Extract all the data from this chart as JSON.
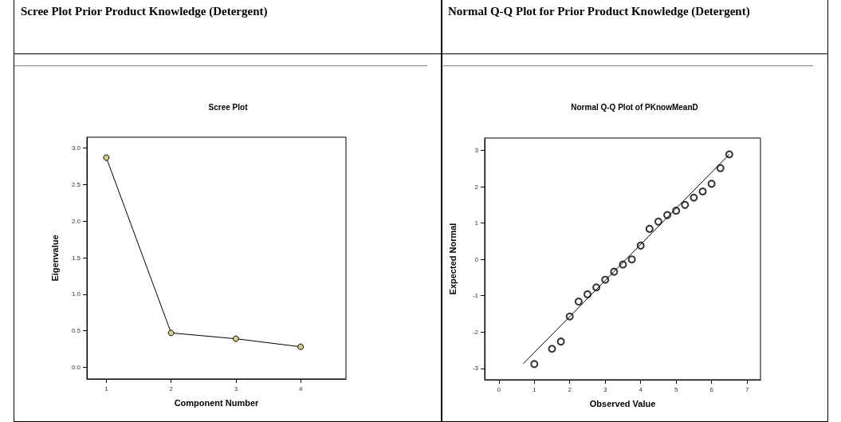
{
  "chart_data": [
    {
      "type": "line",
      "title": "Scree Plot Prior Product Knowledge (Detergent)",
      "subtitle": "Scree Plot",
      "xlabel": "Component Number",
      "ylabel": "Eigenvalue",
      "x": [
        1,
        2,
        3,
        4
      ],
      "xlim": [
        0.7,
        4.7
      ],
      "xticks": [
        1,
        2,
        3,
        4
      ],
      "ylim": [
        -0.16,
        3.15
      ],
      "yticks": [
        {
          "value": 0,
          "label": "0.0"
        },
        {
          "value": 0.5,
          "label": "0.5"
        },
        {
          "value": 1,
          "label": "1.0"
        },
        {
          "value": 1.5,
          "label": "1.5"
        },
        {
          "value": 2,
          "label": "2.0"
        },
        {
          "value": 2.5,
          "label": "2.5"
        },
        {
          "value": 3,
          "label": "3.0"
        }
      ],
      "marker": "circle",
      "line_style": "solid",
      "grid": false,
      "series": [
        {
          "color": "#d4cc8c",
          "values": [
            2.87,
            0.47,
            0.39,
            0.28
          ]
        }
      ]
    },
    {
      "type": "scatter",
      "title": "Normal Q-Q Plot for Prior Product Knowledge (Detergent)",
      "subtitle": "Normal Q-Q Plot of PKnowMeanD",
      "xlabel": "Observed Value",
      "ylabel": "Expected Normal",
      "xlim": [
        -0.4,
        7.38
      ],
      "xticks": [
        0,
        1,
        2,
        3,
        4,
        5,
        6,
        7
      ],
      "ylim": [
        -3.31,
        3.34
      ],
      "yticks": [
        -3,
        -2,
        -1,
        0,
        1,
        2,
        3
      ],
      "marker": "circle",
      "grid": false,
      "series": [
        {
          "color": "#000000",
          "x": [
            1,
            1.5,
            1.75,
            2,
            2.25,
            2.5,
            2.75,
            3,
            3.25,
            3.5,
            3.75,
            4,
            4.25,
            4.5,
            4.75,
            5,
            5.25,
            5.5,
            5.75,
            6,
            6.25,
            6.5
          ],
          "values": [
            -2.88,
            -2.46,
            -2.26,
            -1.57,
            -1.16,
            -0.96,
            -0.77,
            -0.56,
            -0.34,
            -0.14,
            0.0,
            0.38,
            0.84,
            1.04,
            1.22,
            1.34,
            1.5,
            1.7,
            1.87,
            2.08,
            2.51,
            2.89
          ]
        },
        {
          "type": "line",
          "color": "#000000",
          "x": [
            0.69,
            6.5
          ],
          "values": [
            -2.87,
            2.89
          ],
          "line_style": "solid",
          "marker": "none"
        }
      ]
    }
  ]
}
